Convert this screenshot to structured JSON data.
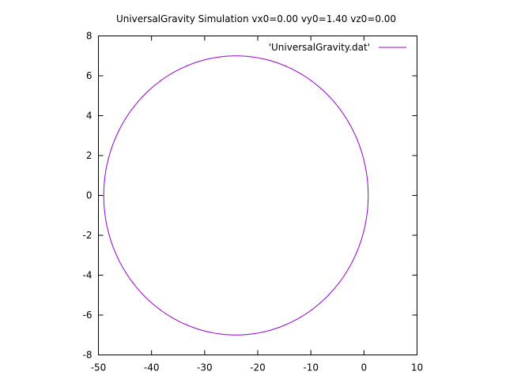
{
  "chart_data": {
    "type": "line",
    "title": "UniversalGravity Simulation vx0=0.00 vy0=1.40 vz0=0.00",
    "xlabel": "",
    "ylabel": "",
    "xlim": [
      -50,
      10
    ],
    "ylim": [
      -8,
      8
    ],
    "xticks": [
      -50,
      -40,
      -30,
      -20,
      -10,
      0,
      10
    ],
    "yticks": [
      -8,
      -6,
      -4,
      -2,
      0,
      2,
      4,
      6,
      8
    ],
    "grid": false,
    "legend_position": "top-right",
    "series": [
      {
        "name": "'UniversalGravity.dat'",
        "color": "#9400d3",
        "shape": "ellipse",
        "center": [
          -24.1,
          0
        ],
        "semi_axis_x": 24.9,
        "semi_axis_y": 7.0,
        "x_range": [
          -49.0,
          0.8
        ],
        "y_range": [
          -7.0,
          7.0
        ]
      }
    ]
  }
}
